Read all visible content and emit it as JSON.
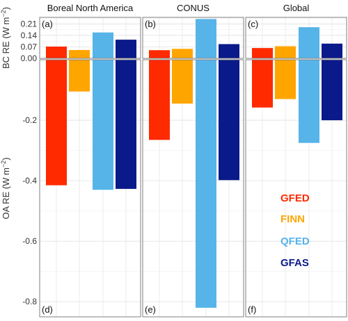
{
  "chart_data": {
    "type": "bar",
    "categories": [
      "GFED",
      "FINN",
      "QFED",
      "GFAS"
    ],
    "colors": [
      "#ff2a00",
      "#ffa500",
      "#56b4e9",
      "#0a1a8a"
    ],
    "legend": [
      {
        "label": "GFED",
        "color": "#ff2a00"
      },
      {
        "label": "FINN",
        "color": "#ffa500"
      },
      {
        "label": "QFED",
        "color": "#56b4e9"
      },
      {
        "label": "GFAS",
        "color": "#0a1a8a"
      }
    ],
    "legend_placement": "bottom-right (inside panel f)",
    "grid": true,
    "panels": [
      {
        "title": "Boreal North America",
        "bc_label": "(a)",
        "oa_label": "(d)",
        "bc_values": [
          0.072,
          0.051,
          0.158,
          0.114
        ],
        "oa_values": [
          -0.415,
          -0.105,
          -0.43,
          -0.427
        ]
      },
      {
        "title": "CONUS",
        "bc_label": "(b)",
        "oa_label": "(e)",
        "bc_values": [
          0.05,
          0.058,
          0.24,
          0.087
        ],
        "oa_values": [
          -0.265,
          -0.145,
          -0.82,
          -0.398
        ]
      },
      {
        "title": "Global",
        "bc_label": "(c)",
        "oa_label": "(f)",
        "bc_values": [
          0.063,
          0.074,
          0.19,
          0.09
        ],
        "oa_values": [
          -0.158,
          -0.13,
          -0.275,
          -0.2
        ]
      }
    ],
    "bc_axis": {
      "label_prefix": "BC RE (W m",
      "label_sup": "−2",
      "label_suffix": ")",
      "ylim": [
        0,
        0.25
      ],
      "ticks": [
        0.0,
        0.07,
        0.14,
        0.21
      ],
      "tick_labels": [
        "0.00",
        "0.07",
        "0.14",
        "0.21"
      ]
    },
    "oa_axis": {
      "label_prefix": "OA RE (W m",
      "label_sup": "−2",
      "label_suffix": ")",
      "ylim": [
        -0.85,
        0
      ],
      "ticks": [
        -0.2,
        -0.4,
        -0.6,
        -0.8
      ],
      "tick_labels": [
        "-0.2",
        "-0.4",
        "-0.6",
        "-0.8"
      ]
    }
  }
}
